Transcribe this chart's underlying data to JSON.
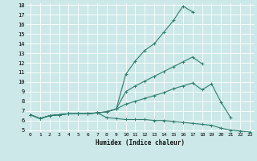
{
  "xlabel": "Humidex (Indice chaleur)",
  "bg_color": "#cce8e8",
  "grid_color": "#ffffff",
  "line_color": "#2e7d6e",
  "x": [
    0,
    1,
    2,
    3,
    4,
    5,
    6,
    7,
    8,
    9,
    10,
    11,
    12,
    13,
    14,
    15,
    16,
    17,
    18,
    19,
    20,
    21,
    22,
    23
  ],
  "line1": [
    6.6,
    6.2,
    6.5,
    6.6,
    6.7,
    6.7,
    6.7,
    6.8,
    6.9,
    7.2,
    10.8,
    12.2,
    13.3,
    14.0,
    15.2,
    16.4,
    17.9,
    17.3,
    null,
    null,
    null,
    null,
    null,
    null
  ],
  "line2": [
    6.6,
    6.2,
    6.5,
    6.6,
    6.7,
    6.7,
    6.7,
    6.8,
    6.9,
    7.2,
    9.0,
    9.6,
    10.1,
    10.6,
    11.1,
    11.6,
    12.1,
    12.6,
    11.9,
    null,
    null,
    null,
    null,
    null
  ],
  "line3": [
    6.6,
    6.2,
    6.5,
    6.6,
    6.7,
    6.7,
    6.7,
    6.8,
    6.9,
    7.2,
    7.7,
    8.0,
    8.3,
    8.6,
    8.9,
    9.3,
    9.6,
    9.9,
    9.2,
    9.8,
    7.9,
    6.3,
    null,
    null
  ],
  "line4": [
    6.6,
    6.2,
    6.5,
    6.6,
    6.7,
    6.7,
    6.7,
    6.8,
    6.3,
    6.2,
    6.1,
    6.1,
    6.1,
    6.0,
    6.0,
    5.9,
    5.8,
    5.7,
    5.6,
    5.5,
    5.2,
    5.0,
    4.9,
    4.8
  ],
  "ylim": [
    4.8,
    18.2
  ],
  "xlim": [
    -0.5,
    23.5
  ],
  "yticks": [
    5,
    6,
    7,
    8,
    9,
    10,
    11,
    12,
    13,
    14,
    15,
    16,
    17,
    18
  ],
  "xticks": [
    0,
    1,
    2,
    3,
    4,
    5,
    6,
    7,
    8,
    9,
    10,
    11,
    12,
    13,
    14,
    15,
    16,
    17,
    18,
    19,
    20,
    21,
    22,
    23
  ]
}
